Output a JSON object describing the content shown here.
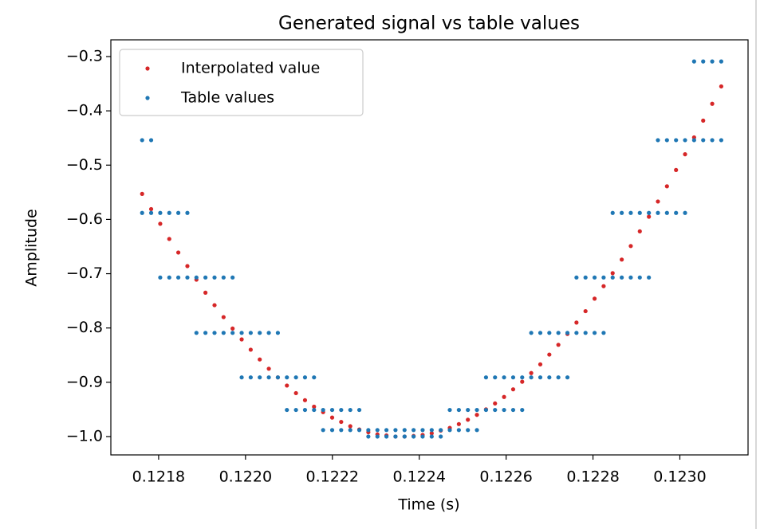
{
  "chart_data": {
    "type": "scatter",
    "title": "Generated signal vs table values",
    "xlabel": "Time (s)",
    "ylabel": "Amplitude",
    "xlim": [
      0.12169,
      0.123157
    ],
    "ylim": [
      -1.0338,
      -0.2692
    ],
    "xticks": [
      0.1218,
      {
        "value": 0.122,
        "label": "0.1220"
      },
      0.1222,
      0.1224,
      0.1226,
      0.1228,
      {
        "value": 0.123,
        "label": "0.1230"
      }
    ],
    "yticks": [
      {
        "value": -1.0,
        "label": "−1.0"
      },
      {
        "value": -0.9,
        "label": "−0.9"
      },
      {
        "value": -0.8,
        "label": "−0.8"
      },
      {
        "value": -0.7,
        "label": "−0.7"
      },
      {
        "value": -0.6,
        "label": "−0.6"
      },
      {
        "value": -0.5,
        "label": "−0.5"
      },
      {
        "value": -0.4,
        "label": "−0.4"
      },
      {
        "value": -0.3,
        "label": "−0.3"
      }
    ],
    "legend": "upper left",
    "series": [
      {
        "name": "Interpolated value",
        "color": "#d62728",
        "x": [
          0.121762,
          0.1217828,
          0.1218037,
          0.1218245,
          0.1218453,
          0.1218662,
          0.121887,
          0.1219078,
          0.1219287,
          0.1219495,
          0.1219703,
          0.1219912,
          0.122012,
          0.1220328,
          0.1220537,
          0.1220745,
          0.1220953,
          0.1221162,
          0.122137,
          0.1221578,
          0.1221787,
          0.1221995,
          0.1222203,
          0.1222412,
          0.122262,
          0.1222828,
          0.1223037,
          0.1223245,
          0.1223453,
          0.1223662,
          0.122387,
          0.1224078,
          0.1224287,
          0.1224495,
          0.1224703,
          0.1224912,
          0.122512,
          0.1225328,
          0.1225537,
          0.1225745,
          0.1225953,
          0.1226162,
          0.122637,
          0.1226578,
          0.1226787,
          0.1226995,
          0.1227203,
          0.1227412,
          0.122762,
          0.1227828,
          0.1228037,
          0.1228245,
          0.1228453,
          0.1228662,
          0.122887,
          0.1229078,
          0.1229287,
          0.1229495,
          0.1229703,
          0.1229912,
          0.123012,
          0.1230328,
          0.1230537,
          0.1230745,
          0.1230953
        ],
        "values": [
          -0.553,
          -0.581,
          -0.608,
          -0.636,
          -0.661,
          -0.686,
          -0.711,
          -0.735,
          -0.758,
          -0.78,
          -0.801,
          -0.821,
          -0.84,
          -0.858,
          -0.875,
          -0.891,
          -0.906,
          -0.92,
          -0.933,
          -0.945,
          -0.955,
          -0.965,
          -0.973,
          -0.981,
          -0.987,
          -0.992,
          -0.996,
          -0.998,
          -1.0,
          -1.0,
          -0.999,
          -0.997,
          -0.994,
          -0.989,
          -0.984,
          -0.977,
          -0.969,
          -0.96,
          -0.95,
          -0.939,
          -0.927,
          -0.913,
          -0.899,
          -0.883,
          -0.867,
          -0.849,
          -0.831,
          -0.811,
          -0.79,
          -0.769,
          -0.746,
          -0.723,
          -0.699,
          -0.674,
          -0.649,
          -0.622,
          -0.595,
          -0.567,
          -0.539,
          -0.509,
          -0.48,
          -0.449,
          -0.418,
          -0.387,
          -0.355
        ]
      },
      {
        "name": "Table values",
        "color": "#1f77b4",
        "x": [
          0.121762,
          0.121762,
          0.1217828,
          0.1217828,
          0.1218037,
          0.1218037,
          0.1218245,
          0.1218245,
          0.1218453,
          0.1218453,
          0.1218662,
          0.1218662,
          0.121887,
          0.121887,
          0.1219078,
          0.1219078,
          0.1219287,
          0.1219287,
          0.1219495,
          0.1219495,
          0.1219703,
          0.1219703,
          0.1219912,
          0.1219912,
          0.122012,
          0.122012,
          0.1220328,
          0.1220328,
          0.1220537,
          0.1220537,
          0.1220745,
          0.1220745,
          0.1220953,
          0.1220953,
          0.1221162,
          0.1221162,
          0.122137,
          0.122137,
          0.1221578,
          0.1221578,
          0.1221787,
          0.1221787,
          0.1221995,
          0.1221995,
          0.1222203,
          0.1222203,
          0.1222412,
          0.1222412,
          0.122262,
          0.122262,
          0.1222828,
          0.1222828,
          0.1223037,
          0.1223037,
          0.1223245,
          0.1223245,
          0.1223453,
          0.1223453,
          0.1223662,
          0.1223662,
          0.122387,
          0.122387,
          0.1224078,
          0.1224078,
          0.1224287,
          0.1224287,
          0.1224495,
          0.1224495,
          0.1224703,
          0.1224703,
          0.1224912,
          0.1224912,
          0.122512,
          0.122512,
          0.1225328,
          0.1225328,
          0.1225537,
          0.1225537,
          0.1225745,
          0.1225745,
          0.1225953,
          0.1225953,
          0.1226162,
          0.1226162,
          0.122637,
          0.122637,
          0.1226578,
          0.1226578,
          0.1226787,
          0.1226787,
          0.1226995,
          0.1226995,
          0.1227203,
          0.1227203,
          0.1227412,
          0.1227412,
          0.122762,
          0.122762,
          0.1227828,
          0.1227828,
          0.1228037,
          0.1228037,
          0.1228245,
          0.1228245,
          0.1228453,
          0.1228453,
          0.1228662,
          0.1228662,
          0.122887,
          0.122887,
          0.1229078,
          0.1229078,
          0.1229287,
          0.1229287,
          0.1229495,
          0.1229495,
          0.1229703,
          0.1229703,
          0.1229912,
          0.1229912,
          0.123012,
          0.123012,
          0.1230328,
          0.1230328,
          0.1230537,
          0.1230537,
          0.1230745,
          0.1230745,
          0.1230953,
          0.1230953
        ],
        "values": [
          -0.588,
          -0.454,
          -0.588,
          -0.454,
          -0.707,
          -0.588,
          -0.707,
          -0.588,
          -0.707,
          -0.588,
          -0.707,
          -0.588,
          -0.809,
          -0.707,
          -0.809,
          -0.707,
          -0.809,
          -0.707,
          -0.809,
          -0.707,
          -0.809,
          -0.707,
          -0.891,
          -0.809,
          -0.891,
          -0.809,
          -0.891,
          -0.809,
          -0.891,
          -0.809,
          -0.891,
          -0.809,
          -0.951,
          -0.891,
          -0.951,
          -0.891,
          -0.951,
          -0.891,
          -0.951,
          -0.891,
          -0.988,
          -0.951,
          -0.988,
          -0.951,
          -0.988,
          -0.951,
          -0.988,
          -0.951,
          -0.988,
          -0.951,
          -1.0,
          -0.988,
          -1.0,
          -0.988,
          -1.0,
          -0.988,
          -1.0,
          -0.988,
          -1.0,
          -0.988,
          -1.0,
          -0.988,
          -1.0,
          -0.988,
          -1.0,
          -0.988,
          -1.0,
          -0.988,
          -0.988,
          -0.951,
          -0.988,
          -0.951,
          -0.988,
          -0.951,
          -0.988,
          -0.951,
          -0.951,
          -0.891,
          -0.951,
          -0.891,
          -0.951,
          -0.891,
          -0.951,
          -0.891,
          -0.951,
          -0.891,
          -0.891,
          -0.809,
          -0.891,
          -0.809,
          -0.891,
          -0.809,
          -0.891,
          -0.809,
          -0.891,
          -0.809,
          -0.809,
          -0.707,
          -0.809,
          -0.707,
          -0.809,
          -0.707,
          -0.809,
          -0.707,
          -0.707,
          -0.588,
          -0.707,
          -0.588,
          -0.707,
          -0.588,
          -0.707,
          -0.588,
          -0.707,
          -0.588,
          -0.588,
          -0.454,
          -0.588,
          -0.454,
          -0.588,
          -0.454,
          -0.588,
          -0.454,
          -0.454,
          -0.309,
          -0.454,
          -0.309,
          -0.454,
          -0.309,
          -0.454,
          -0.309
        ]
      }
    ]
  }
}
